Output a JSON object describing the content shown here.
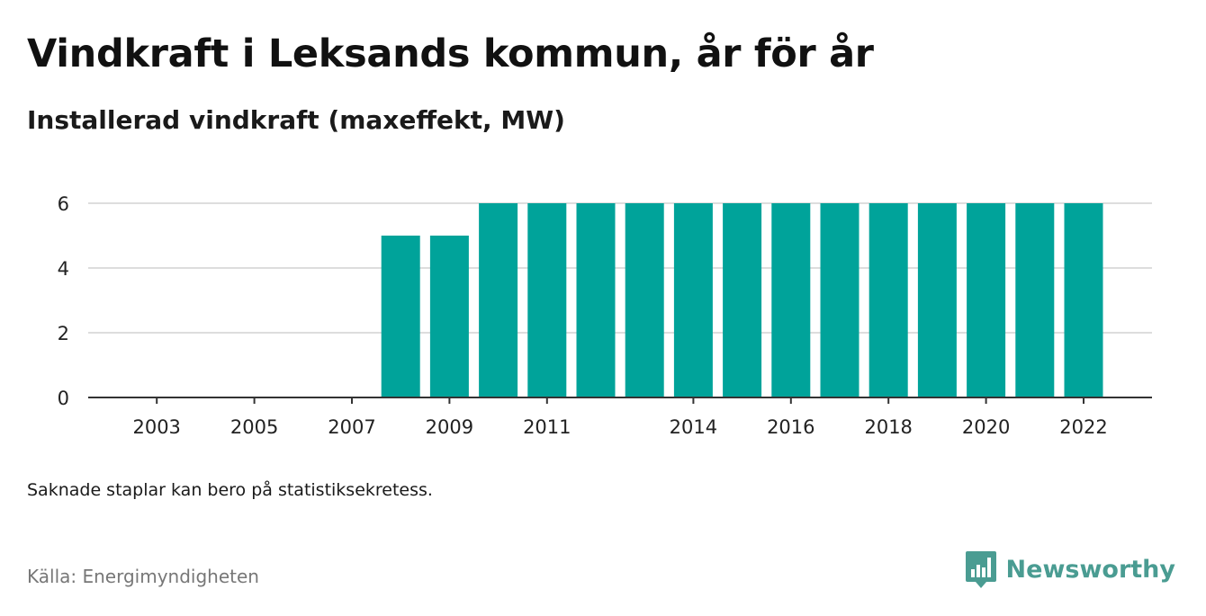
{
  "header": {
    "title": "Vindkraft i Leksands kommun, år för år",
    "subtitle": "Installerad vindkraft (maxeffekt, MW)"
  },
  "footer": {
    "note": "Saknade staplar kan bero på statistiksekretess.",
    "source": "Källa: Energimyndigheten",
    "brand": "Newsworthy",
    "brand_icon": "newsworthy-logo-icon"
  },
  "colors": {
    "bar": "#00a39a",
    "grid": "#dddddd",
    "axis": "#333333",
    "brand": "#4a9c92"
  },
  "chart_data": {
    "type": "bar",
    "title": "Vindkraft i Leksands kommun, år för år",
    "subtitle": "Installerad vindkraft (maxeffekt, MW)",
    "xlabel": "",
    "ylabel": "",
    "categories": [
      "2002",
      "2003",
      "2004",
      "2005",
      "2006",
      "2007",
      "2008",
      "2009",
      "2010",
      "2011",
      "2012",
      "2013",
      "2014",
      "2015",
      "2016",
      "2017",
      "2018",
      "2019",
      "2020",
      "2021",
      "2022"
    ],
    "values": [
      0,
      0,
      0,
      0,
      0,
      0,
      5,
      5,
      6,
      6,
      6,
      6,
      6,
      6,
      6,
      6,
      6,
      6,
      6,
      6,
      6
    ],
    "x_tick_labels": [
      "2003",
      "2005",
      "2007",
      "2009",
      "2011",
      "2014",
      "2016",
      "2018",
      "2020",
      "2022"
    ],
    "y_ticks": [
      0,
      2,
      4,
      6
    ],
    "ylim": [
      0,
      6.4
    ],
    "grid": true,
    "legend": "none"
  }
}
